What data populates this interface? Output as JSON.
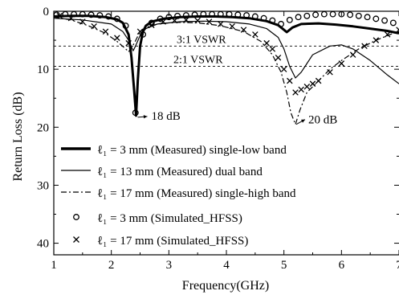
{
  "chart_data": {
    "type": "line",
    "xlabel": "Frequency(GHz)",
    "ylabel": "Return Loss (dB)",
    "xlim": [
      1,
      7
    ],
    "ylim": [
      0,
      42
    ],
    "y_inverted": true,
    "x_ticks": [
      "1",
      "2",
      "3",
      "4",
      "5",
      "6",
      "7"
    ],
    "y_ticks": [
      "0",
      "10",
      "20",
      "30",
      "40"
    ],
    "grid": false,
    "legend_position": "bottom-left",
    "reference_lines": [
      {
        "label": "3:1 VSWR",
        "y": 6.0
      },
      {
        "label": "2:1 VSWR",
        "y": 9.5
      }
    ],
    "annotations": [
      {
        "text": "18 dB",
        "x": 2.43,
        "y": 18.0
      },
      {
        "text": "20 dB",
        "x": 5.2,
        "y": 19.5
      }
    ],
    "series": [
      {
        "name": "ℓ₁ = 3 mm (Measured) single-low band",
        "style": "thick-solid",
        "x": [
          1.0,
          1.3,
          1.6,
          1.9,
          2.1,
          2.2,
          2.3,
          2.35,
          2.4,
          2.43,
          2.46,
          2.5,
          2.55,
          2.6,
          2.7,
          2.9,
          3.2,
          3.5,
          3.8,
          4.1,
          4.4,
          4.7,
          4.9,
          5.0,
          5.05,
          5.15,
          5.3,
          5.6,
          5.9,
          6.2,
          6.5,
          6.8,
          7.0
        ],
        "y": [
          0.9,
          0.8,
          0.8,
          1.0,
          1.4,
          2.0,
          4.0,
          8.0,
          14.0,
          18.0,
          12.0,
          6.0,
          3.5,
          2.5,
          1.8,
          1.3,
          1.0,
          0.9,
          0.9,
          1.0,
          1.2,
          1.7,
          2.4,
          3.2,
          3.6,
          2.8,
          2.2,
          2.1,
          2.3,
          2.6,
          3.0,
          3.4,
          3.8
        ]
      },
      {
        "name": "ℓ₁ = 13 mm (Measured) dual band",
        "style": "thin-solid",
        "x": [
          1.0,
          1.5,
          2.0,
          2.2,
          2.3,
          2.38,
          2.42,
          2.5,
          2.6,
          2.8,
          3.2,
          3.6,
          4.0,
          4.4,
          4.7,
          4.9,
          5.0,
          5.1,
          5.2,
          5.3,
          5.5,
          5.8,
          6.0,
          6.2,
          6.5,
          6.8,
          7.0
        ],
        "y": [
          1.2,
          1.5,
          2.2,
          3.5,
          5.0,
          6.8,
          6.0,
          4.2,
          3.0,
          2.2,
          1.8,
          1.7,
          1.8,
          2.2,
          3.0,
          4.5,
          6.5,
          9.5,
          11.5,
          10.5,
          7.5,
          6.0,
          5.8,
          6.5,
          8.5,
          11.0,
          12.5
        ]
      },
      {
        "name": "ℓ₁ = 17 mm (Measured) single-high band",
        "style": "dash-dot",
        "x": [
          1.0,
          1.3,
          1.6,
          1.9,
          2.1,
          2.25,
          2.3,
          2.4,
          2.5,
          2.6,
          2.8,
          3.1,
          3.5,
          3.9,
          4.3,
          4.6,
          4.8,
          4.95,
          5.05,
          5.12,
          5.2,
          5.28,
          5.4,
          5.6,
          5.8,
          6.0,
          6.3,
          6.6,
          6.9,
          7.0
        ],
        "y": [
          1.0,
          1.5,
          2.5,
          3.8,
          5.2,
          6.5,
          7.0,
          5.5,
          3.5,
          2.8,
          2.2,
          1.9,
          2.0,
          2.5,
          3.5,
          5.2,
          7.5,
          10.5,
          14.0,
          17.5,
          19.5,
          17.0,
          14.0,
          12.0,
          10.0,
          8.5,
          6.5,
          5.0,
          3.8,
          3.5
        ]
      },
      {
        "name": "ℓ₁ = 3 mm (Simulated_HFSS)",
        "style": "circle-markers",
        "x": [
          1.05,
          1.2,
          1.35,
          1.5,
          1.65,
          1.8,
          1.95,
          2.1,
          2.25,
          2.42,
          2.55,
          2.7,
          2.85,
          3.0,
          3.15,
          3.3,
          3.45,
          3.6,
          3.75,
          3.9,
          4.05,
          4.2,
          4.35,
          4.5,
          4.65,
          4.8,
          4.95,
          5.1,
          5.25,
          5.4,
          5.55,
          5.7,
          5.85,
          6.0,
          6.15,
          6.3,
          6.45,
          6.6,
          6.75,
          6.9
        ],
        "y": [
          0.6,
          0.5,
          0.5,
          0.5,
          0.6,
          0.7,
          0.9,
          1.3,
          2.5,
          17.5,
          4.0,
          2.0,
          1.3,
          1.0,
          0.8,
          0.7,
          0.6,
          0.5,
          0.5,
          0.5,
          0.5,
          0.6,
          0.7,
          0.9,
          1.2,
          1.6,
          2.2,
          1.5,
          1.0,
          0.8,
          0.6,
          0.5,
          0.5,
          0.5,
          0.6,
          0.8,
          1.0,
          1.3,
          1.6,
          2.0
        ]
      },
      {
        "name": "ℓ₁ = 17 mm (Simulated_HFSS)",
        "style": "x-markers",
        "x": [
          1.1,
          1.3,
          1.5,
          1.7,
          1.9,
          2.1,
          2.3,
          2.5,
          2.7,
          2.9,
          3.1,
          3.3,
          3.5,
          3.7,
          3.9,
          4.1,
          4.3,
          4.5,
          4.7,
          4.8,
          4.9,
          5.0,
          5.1,
          5.2,
          5.3,
          5.4,
          5.5,
          5.6,
          5.8,
          6.0,
          6.2,
          6.4,
          6.6,
          6.8,
          7.0
        ],
        "y": [
          0.8,
          1.2,
          1.8,
          2.6,
          3.5,
          4.6,
          5.5,
          3.5,
          2.4,
          1.8,
          1.6,
          1.5,
          1.6,
          1.8,
          2.2,
          2.6,
          3.2,
          4.0,
          5.5,
          6.5,
          8.0,
          10.0,
          12.0,
          14.0,
          13.5,
          13.0,
          12.5,
          12.0,
          10.5,
          9.0,
          7.5,
          6.0,
          5.0,
          4.0,
          3.2
        ]
      }
    ]
  }
}
